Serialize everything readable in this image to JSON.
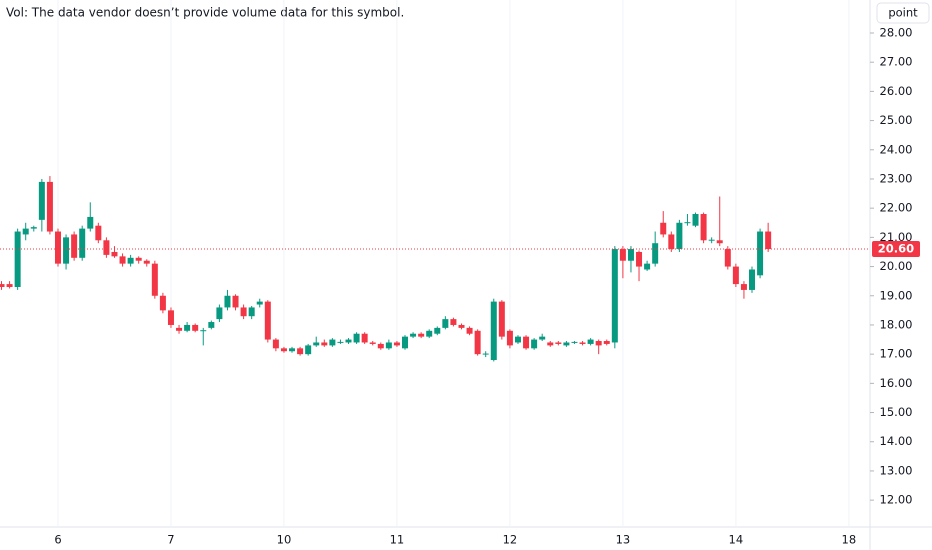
{
  "chart_data": {
    "type": "candlestick",
    "annotation": "Vol: The data vendor doesn’t provide volume data for this symbol.",
    "unit_button": "point",
    "categories": [
      null,
      null,
      null,
      null,
      null,
      null,
      null,
      "6",
      null,
      null,
      null,
      null,
      null,
      null,
      null,
      null,
      null,
      null,
      null,
      null,
      null,
      "7",
      null,
      null,
      null,
      null,
      null,
      null,
      null,
      null,
      null,
      null,
      null,
      null,
      null,
      "10",
      null,
      null,
      null,
      null,
      null,
      null,
      null,
      null,
      null,
      null,
      null,
      null,
      null,
      "11",
      null,
      null,
      null,
      null,
      null,
      null,
      null,
      null,
      null,
      null,
      null,
      null,
      null,
      "12",
      null,
      null,
      null,
      null,
      null,
      null,
      null,
      null,
      null,
      null,
      null,
      null,
      null,
      "13",
      null,
      null,
      null,
      null,
      null,
      null,
      null,
      null,
      null,
      null,
      null,
      null,
      null,
      "14",
      null,
      null,
      null,
      null,
      null,
      null,
      null,
      null,
      null,
      null,
      null,
      null,
      null,
      "18",
      null,
      null
    ],
    "open": [
      19.4,
      19.4,
      19.3,
      21.1,
      21.3,
      21.6,
      22.9,
      21.2,
      20.1,
      21.1,
      20.3,
      21.3,
      21.4,
      20.9,
      20.5,
      20.35,
      20.1,
      20.3,
      20.2,
      20.1,
      19.0,
      18.5,
      17.9,
      17.8,
      18.0,
      17.8,
      17.9,
      18.2,
      18.6,
      19.0,
      18.6,
      18.3,
      18.7,
      18.8,
      17.5,
      17.2,
      17.1,
      17.2,
      17.0,
      17.3,
      17.4,
      17.3,
      17.4,
      17.4,
      17.4,
      17.7,
      17.4,
      17.35,
      17.2,
      17.4,
      17.2,
      17.6,
      17.7,
      17.6,
      17.7,
      17.9,
      18.2,
      18.0,
      17.9,
      17.8,
      17.0,
      16.8,
      18.8,
      17.8,
      17.4,
      17.6,
      17.2,
      17.5,
      17.4,
      17.4,
      17.3,
      17.4,
      17.4,
      17.35,
      17.45,
      17.45,
      17.4,
      20.6,
      20.2,
      20.5,
      19.9,
      20.1,
      21.5,
      21.1,
      20.6,
      21.5,
      21.4,
      21.8,
      20.9,
      20.9,
      20.6,
      20.0,
      19.4,
      19.2,
      19.7,
      21.2,
      null,
      null,
      null,
      null,
      null,
      null,
      null,
      null,
      null,
      null,
      null,
      null
    ],
    "high": [
      19.5,
      19.5,
      21.3,
      21.5,
      21.4,
      23.0,
      23.1,
      21.3,
      21.1,
      21.2,
      21.4,
      22.2,
      21.5,
      21.0,
      20.7,
      20.45,
      20.4,
      20.35,
      20.25,
      20.2,
      19.1,
      18.6,
      18.0,
      18.1,
      18.05,
      17.9,
      18.15,
      18.7,
      19.2,
      19.05,
      18.7,
      18.65,
      18.9,
      18.85,
      17.55,
      17.25,
      17.25,
      17.25,
      17.35,
      17.6,
      17.5,
      17.55,
      17.5,
      17.55,
      17.75,
      17.75,
      17.45,
      17.4,
      17.5,
      17.45,
      17.65,
      17.75,
      17.75,
      17.85,
      17.95,
      18.3,
      18.25,
      18.05,
      17.95,
      17.85,
      17.1,
      18.9,
      18.85,
      17.85,
      17.65,
      17.65,
      17.55,
      17.7,
      17.45,
      17.45,
      17.45,
      17.45,
      17.45,
      17.55,
      17.5,
      17.5,
      20.7,
      20.7,
      20.7,
      20.55,
      20.2,
      21.2,
      21.9,
      21.2,
      21.6,
      21.8,
      21.85,
      21.85,
      21.0,
      22.4,
      20.7,
      20.1,
      19.5,
      20.0,
      21.3,
      21.5,
      null,
      null,
      null,
      null,
      null,
      null,
      null,
      null,
      null,
      null,
      null,
      null
    ],
    "low": [
      19.2,
      19.25,
      19.2,
      20.9,
      21.2,
      21.2,
      21.1,
      20.0,
      19.9,
      20.2,
      20.2,
      21.2,
      20.8,
      20.3,
      20.3,
      20.0,
      20.0,
      20.1,
      20.0,
      18.9,
      18.4,
      17.9,
      17.7,
      17.75,
      17.75,
      17.3,
      17.85,
      18.1,
      18.5,
      18.5,
      18.2,
      18.2,
      18.6,
      17.4,
      17.1,
      17.05,
      17.05,
      16.95,
      16.95,
      17.25,
      17.25,
      17.25,
      17.35,
      17.35,
      17.35,
      17.35,
      17.3,
      17.15,
      17.15,
      17.25,
      17.15,
      17.55,
      17.55,
      17.55,
      17.65,
      17.85,
      17.95,
      17.85,
      17.65,
      16.95,
      16.9,
      16.75,
      17.5,
      17.2,
      17.35,
      17.15,
      17.15,
      17.45,
      17.25,
      17.3,
      17.25,
      17.35,
      17.3,
      17.3,
      17.0,
      17.3,
      17.2,
      19.6,
      19.8,
      19.5,
      19.85,
      20.0,
      21.0,
      20.5,
      20.5,
      21.4,
      21.35,
      20.8,
      20.8,
      20.7,
      19.9,
      19.3,
      18.9,
      19.1,
      19.6,
      20.5,
      null,
      null,
      null,
      null,
      null,
      null,
      null,
      null,
      null,
      null,
      null,
      null
    ],
    "close": [
      19.3,
      19.3,
      21.2,
      21.3,
      21.35,
      22.9,
      21.2,
      20.1,
      21.0,
      20.3,
      21.3,
      21.7,
      20.9,
      20.4,
      20.35,
      20.1,
      20.3,
      20.2,
      20.1,
      19.0,
      18.5,
      18.0,
      17.8,
      18.0,
      17.8,
      17.82,
      18.1,
      18.6,
      19.0,
      18.6,
      18.3,
      18.6,
      18.8,
      17.5,
      17.2,
      17.1,
      17.2,
      17.0,
      17.3,
      17.4,
      17.3,
      17.5,
      17.42,
      17.5,
      17.7,
      17.4,
      17.35,
      17.2,
      17.4,
      17.3,
      17.6,
      17.7,
      17.6,
      17.8,
      17.9,
      18.2,
      18.0,
      17.9,
      17.7,
      17.0,
      17.02,
      18.8,
      17.6,
      17.3,
      17.6,
      17.2,
      17.5,
      17.6,
      17.3,
      17.35,
      17.4,
      17.42,
      17.35,
      17.5,
      17.3,
      17.35,
      20.6,
      20.2,
      20.6,
      20.0,
      20.1,
      20.8,
      21.1,
      20.6,
      21.5,
      21.52,
      21.8,
      20.9,
      20.92,
      20.8,
      20.0,
      19.4,
      19.2,
      19.9,
      21.2,
      20.6,
      null,
      null,
      null,
      null,
      null,
      null,
      null,
      null,
      null,
      null,
      null,
      null
    ],
    "up_color": "#089981",
    "down_color": "#f23645",
    "ylim": [
      11.08,
      29.13
    ],
    "yticks": [
      {
        "value": 12,
        "label": "12.00"
      },
      {
        "value": 13,
        "label": "13.00"
      },
      {
        "value": 14,
        "label": "14.00"
      },
      {
        "value": 15,
        "label": "15.00"
      },
      {
        "value": 16,
        "label": "16.00"
      },
      {
        "value": 17,
        "label": "17.00"
      },
      {
        "value": 18,
        "label": "18.00"
      },
      {
        "value": 19,
        "label": "19.00"
      },
      {
        "value": 20,
        "label": "20.00"
      },
      {
        "value": 21,
        "label": "21.00"
      },
      {
        "value": 22,
        "label": "22.00"
      },
      {
        "value": 23,
        "label": "23.00"
      },
      {
        "value": 24,
        "label": "24.00"
      },
      {
        "value": 25,
        "label": "25.00"
      },
      {
        "value": 26,
        "label": "26.00"
      },
      {
        "value": 27,
        "label": "27.00"
      },
      {
        "value": 28,
        "label": "28.00"
      }
    ],
    "last_price": {
      "value": 20.6,
      "label": "20.60"
    }
  }
}
